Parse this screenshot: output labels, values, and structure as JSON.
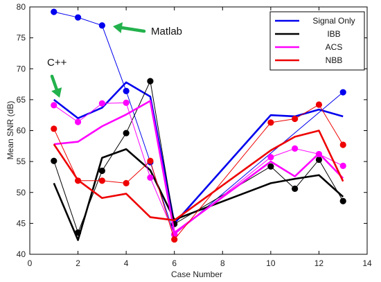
{
  "chart_data": {
    "type": "line",
    "xlabel": "Case Number",
    "ylabel": "Mean SNR (dB)",
    "xlim": [
      0,
      14
    ],
    "ylim": [
      40,
      80
    ],
    "xticks": [
      0,
      2,
      4,
      6,
      8,
      10,
      12,
      14
    ],
    "yticks": [
      40,
      45,
      50,
      55,
      60,
      65,
      70,
      75,
      80
    ],
    "grid": false,
    "legend_position": "top-right",
    "series": [
      {
        "name": "Signal Only",
        "color": "#0000ee",
        "line_x": [
          1,
          2,
          3,
          4,
          5,
          6,
          10,
          11,
          12,
          13
        ],
        "line_y": [
          65.0,
          62.0,
          63.7,
          67.8,
          65.5,
          45.0,
          62.5,
          62.3,
          63.4,
          62.3
        ],
        "marker_x": [
          1,
          2,
          3,
          4,
          5,
          6,
          13
        ],
        "marker_y": [
          79.2,
          78.3,
          77.0,
          66.4,
          54.9,
          43.2,
          66.2
        ]
      },
      {
        "name": "IBB",
        "color": "#000000",
        "line_x": [
          1,
          2,
          3,
          4,
          5,
          6,
          10,
          11,
          12,
          13
        ],
        "line_y": [
          51.5,
          42.3,
          55.6,
          57.0,
          53.6,
          45.6,
          51.5,
          52.2,
          52.8,
          49.3
        ],
        "marker_x": [
          1,
          2,
          3,
          4,
          5,
          6,
          10,
          11,
          12,
          13
        ],
        "marker_y": [
          55.1,
          43.5,
          53.5,
          59.6,
          68.0,
          44.9,
          54.2,
          50.6,
          55.3,
          48.6
        ]
      },
      {
        "name": "ACS",
        "color": "#ff00ff",
        "line_x": [
          1,
          2,
          3,
          4,
          5,
          6,
          10,
          11,
          12,
          13
        ],
        "line_y": [
          57.8,
          58.2,
          60.7,
          62.6,
          64.8,
          43.5,
          55.0,
          52.6,
          56.3,
          52.3
        ],
        "marker_x": [
          1,
          2,
          3,
          4,
          5,
          6,
          10,
          11,
          12,
          13
        ],
        "marker_y": [
          64.1,
          61.4,
          64.4,
          64.5,
          52.4,
          43.2,
          55.7,
          57.1,
          56.2,
          54.3
        ]
      },
      {
        "name": "NBB",
        "color": "#ee0000",
        "line_x": [
          1,
          2,
          3,
          4,
          5,
          6,
          10,
          11,
          12,
          13
        ],
        "line_y": [
          57.8,
          52.0,
          49.1,
          49.8,
          46.0,
          45.5,
          56.8,
          59.0,
          60.0,
          51.8
        ],
        "marker_x": [
          1,
          2,
          3,
          4,
          5,
          6,
          10,
          11,
          12,
          13
        ],
        "marker_y": [
          60.3,
          51.9,
          51.9,
          51.5,
          55.1,
          42.4,
          61.3,
          61.9,
          64.2,
          57.7
        ]
      }
    ],
    "annotations": [
      {
        "text": "Matlab",
        "arrow_color": "#22b14c"
      },
      {
        "text": "C++",
        "arrow_color": "#22b14c"
      }
    ]
  }
}
